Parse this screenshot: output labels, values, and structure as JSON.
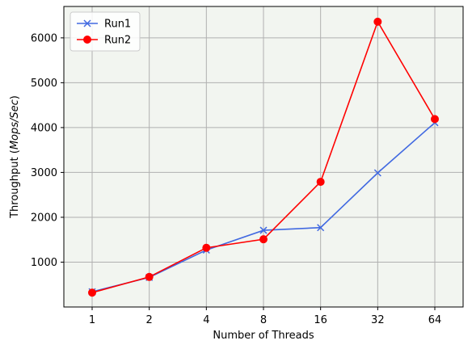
{
  "chart_data": {
    "type": "line",
    "title": "",
    "xlabel": "Number of Threads",
    "ylabel": "Throughput (Mops/Sec)",
    "ylabel_plain": "Throughput (",
    "ylabel_italic": "Mops/Sec",
    "ylabel_close": ")",
    "categories": [
      "1",
      "2",
      "4",
      "8",
      "16",
      "32",
      "64"
    ],
    "ylim": [
      0,
      6700
    ],
    "yticks": [
      1000,
      2000,
      3000,
      4000,
      5000,
      6000
    ],
    "ytick_labels": [
      "1000",
      "2000",
      "3000",
      "4000",
      "5000",
      "6000"
    ],
    "grid": true,
    "legend_position": "top-left",
    "series": [
      {
        "name": "Run1",
        "color": "#4169e1",
        "marker": "x",
        "values": [
          340,
          660,
          1270,
          1710,
          1770,
          2990,
          4110
        ]
      },
      {
        "name": "Run2",
        "color": "#ff0000",
        "marker": "circle",
        "values": [
          320,
          670,
          1320,
          1510,
          2790,
          6360,
          4190
        ]
      }
    ],
    "plot_background": "#f2f5f0"
  }
}
